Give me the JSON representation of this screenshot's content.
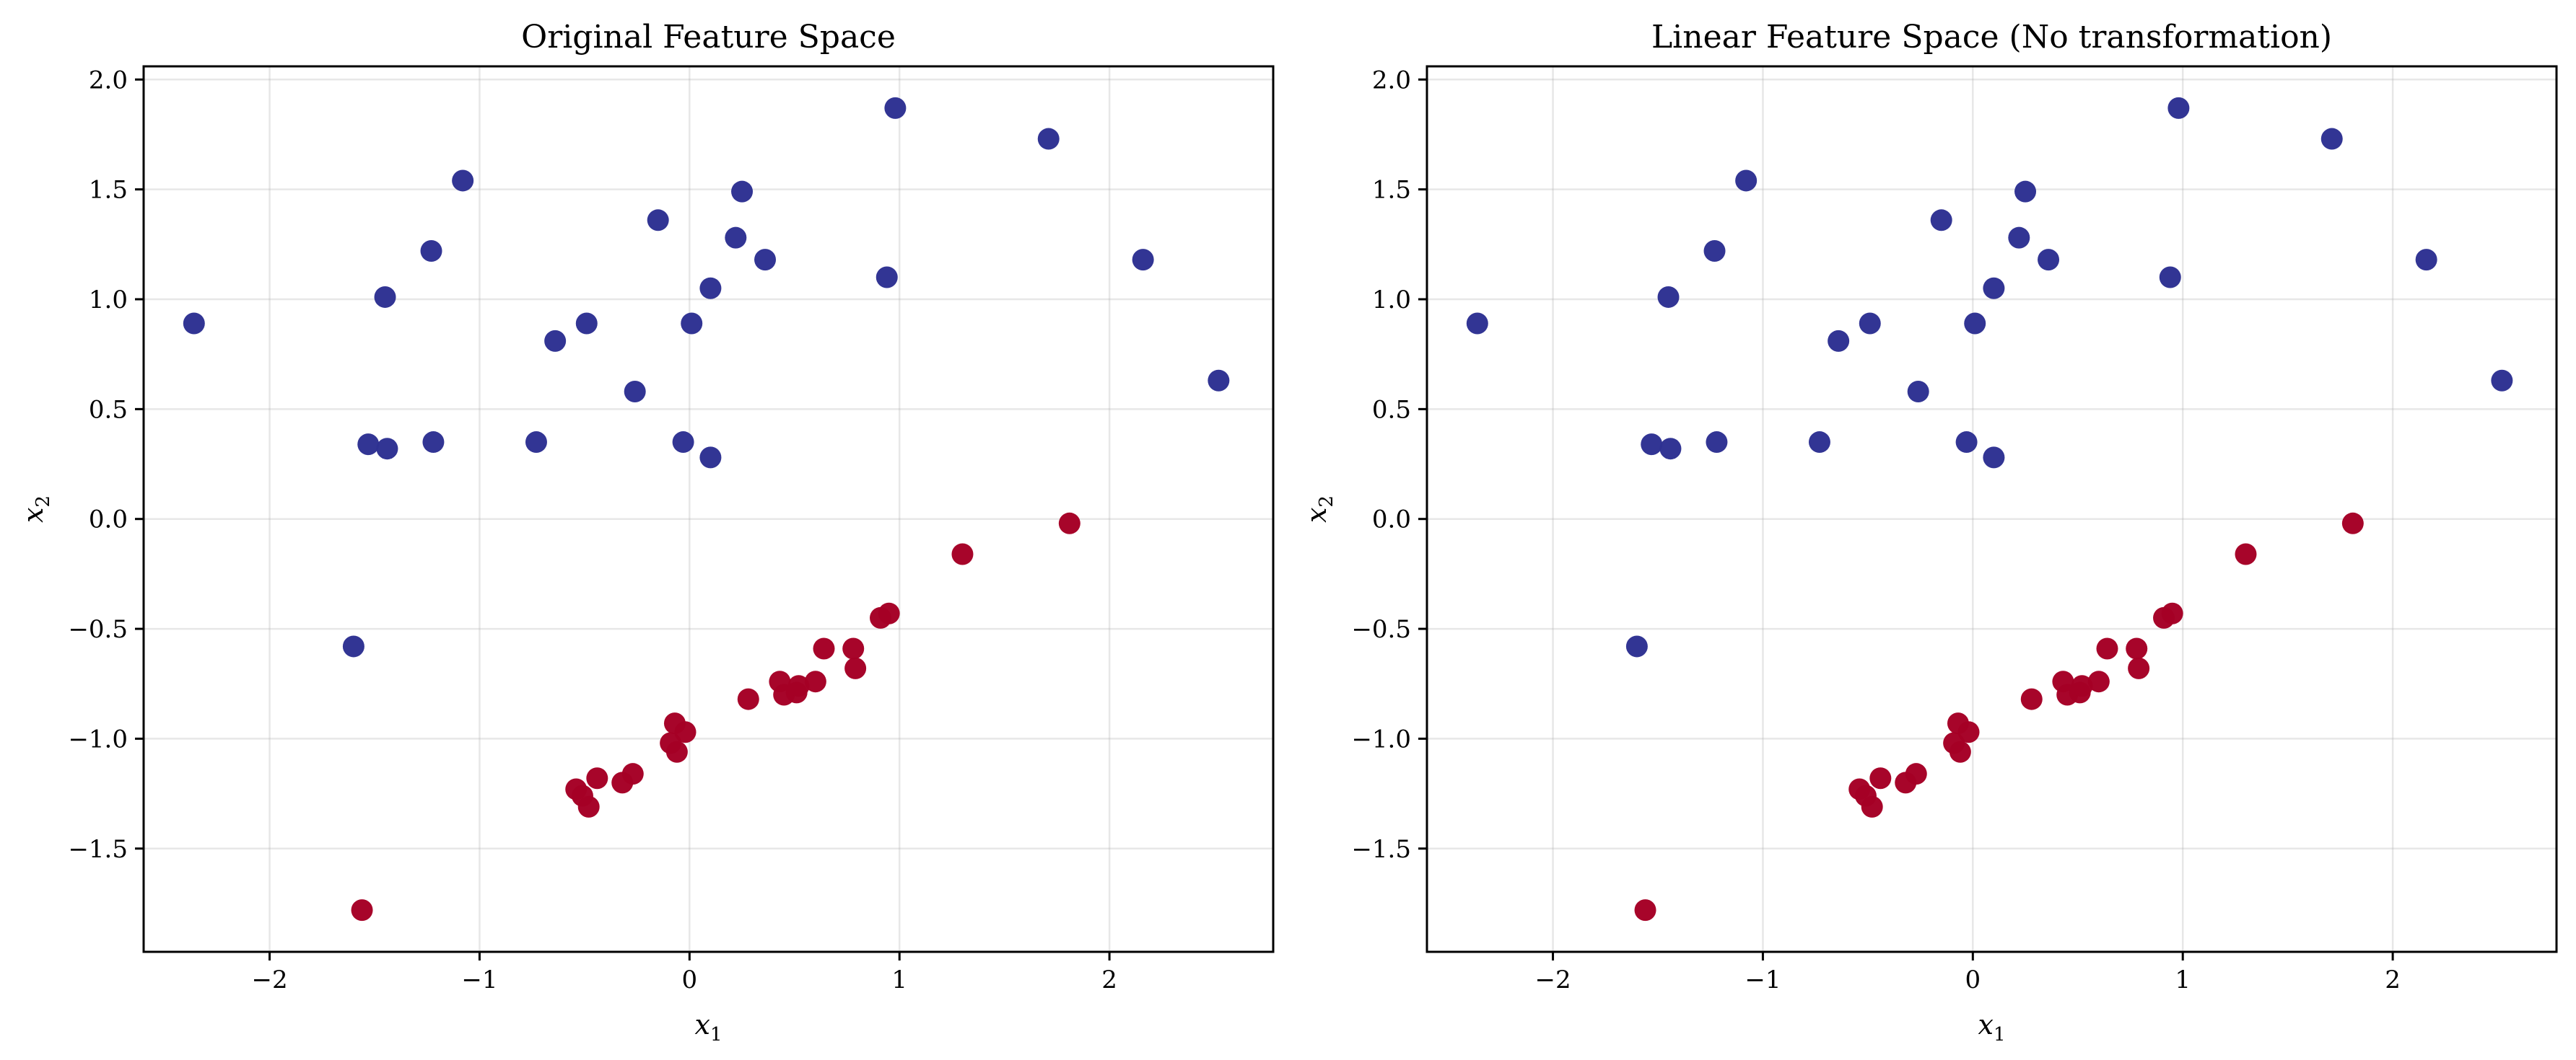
{
  "chart_data": [
    {
      "type": "scatter",
      "title": "Original Feature Space",
      "xlabel": "x",
      "xlabel_sub": "1",
      "ylabel": "x",
      "ylabel_sub": "2",
      "xlim": [
        -2.6,
        2.78
      ],
      "ylim": [
        -1.97,
        2.06
      ],
      "xticks": [
        -2,
        -1,
        0,
        1,
        2
      ],
      "yticks": [
        -1.5,
        -1.0,
        -0.5,
        0.0,
        0.5,
        1.0,
        1.5,
        2.0
      ],
      "xtick_labels": [
        "−2",
        "−1",
        "0",
        "1",
        "2"
      ],
      "ytick_labels": [
        "−1.5",
        "−1.0",
        "−0.5",
        "0.0",
        "0.5",
        "1.0",
        "1.5",
        "2.0"
      ],
      "grid": true,
      "series": [
        {
          "color": "#2e3192",
          "points": [
            [
              -2.36,
              0.89
            ],
            [
              -1.53,
              0.34
            ],
            [
              -1.45,
              1.01
            ],
            [
              -1.44,
              0.32
            ],
            [
              -1.23,
              1.22
            ],
            [
              -1.22,
              0.35
            ],
            [
              -1.08,
              1.54
            ],
            [
              -0.73,
              0.35
            ],
            [
              -0.64,
              0.81
            ],
            [
              -0.49,
              0.89
            ],
            [
              -0.26,
              0.58
            ],
            [
              -0.15,
              1.36
            ],
            [
              -0.03,
              0.35
            ],
            [
              0.01,
              0.89
            ],
            [
              0.1,
              1.05
            ],
            [
              0.1,
              0.28
            ],
            [
              0.22,
              1.28
            ],
            [
              0.25,
              1.49
            ],
            [
              0.36,
              1.18
            ],
            [
              0.94,
              1.1
            ],
            [
              0.98,
              1.87
            ],
            [
              1.71,
              1.73
            ],
            [
              2.16,
              1.18
            ],
            [
              2.52,
              0.63
            ],
            [
              -1.6,
              -0.58
            ]
          ]
        },
        {
          "color": "#a50026",
          "points": [
            [
              -1.56,
              -1.78
            ],
            [
              -0.54,
              -1.23
            ],
            [
              -0.51,
              -1.26
            ],
            [
              -0.48,
              -1.31
            ],
            [
              -0.44,
              -1.18
            ],
            [
              -0.32,
              -1.2
            ],
            [
              -0.27,
              -1.16
            ],
            [
              -0.09,
              -1.02
            ],
            [
              -0.07,
              -0.93
            ],
            [
              -0.06,
              -1.06
            ],
            [
              -0.02,
              -0.97
            ],
            [
              0.28,
              -0.82
            ],
            [
              0.43,
              -0.74
            ],
            [
              0.45,
              -0.8
            ],
            [
              0.51,
              -0.79
            ],
            [
              0.52,
              -0.76
            ],
            [
              0.6,
              -0.74
            ],
            [
              0.64,
              -0.59
            ],
            [
              0.78,
              -0.59
            ],
            [
              0.79,
              -0.68
            ],
            [
              0.91,
              -0.45
            ],
            [
              0.95,
              -0.43
            ],
            [
              1.3,
              -0.16
            ],
            [
              1.81,
              -0.02
            ]
          ]
        }
      ]
    },
    {
      "type": "scatter",
      "title": "Linear Feature Space (No transformation)",
      "xlabel": "x",
      "xlabel_sub": "1",
      "ylabel": "x",
      "ylabel_sub": "2",
      "xlim": [
        -2.6,
        2.78
      ],
      "ylim": [
        -1.97,
        2.06
      ],
      "xticks": [
        -2,
        -1,
        0,
        1,
        2
      ],
      "yticks": [
        -1.5,
        -1.0,
        -0.5,
        0.0,
        0.5,
        1.0,
        1.5,
        2.0
      ],
      "xtick_labels": [
        "−2",
        "−1",
        "0",
        "1",
        "2"
      ],
      "ytick_labels": [
        "−1.5",
        "−1.0",
        "−0.5",
        "0.0",
        "0.5",
        "1.0",
        "1.5",
        "2.0"
      ],
      "grid": true,
      "series": [
        {
          "color": "#2e3192",
          "points": [
            [
              -2.36,
              0.89
            ],
            [
              -1.53,
              0.34
            ],
            [
              -1.45,
              1.01
            ],
            [
              -1.44,
              0.32
            ],
            [
              -1.23,
              1.22
            ],
            [
              -1.22,
              0.35
            ],
            [
              -1.08,
              1.54
            ],
            [
              -0.73,
              0.35
            ],
            [
              -0.64,
              0.81
            ],
            [
              -0.49,
              0.89
            ],
            [
              -0.26,
              0.58
            ],
            [
              -0.15,
              1.36
            ],
            [
              -0.03,
              0.35
            ],
            [
              0.01,
              0.89
            ],
            [
              0.1,
              1.05
            ],
            [
              0.1,
              0.28
            ],
            [
              0.22,
              1.28
            ],
            [
              0.25,
              1.49
            ],
            [
              0.36,
              1.18
            ],
            [
              0.94,
              1.1
            ],
            [
              0.98,
              1.87
            ],
            [
              1.71,
              1.73
            ],
            [
              2.16,
              1.18
            ],
            [
              2.52,
              0.63
            ],
            [
              -1.6,
              -0.58
            ]
          ]
        },
        {
          "color": "#a50026",
          "points": [
            [
              -1.56,
              -1.78
            ],
            [
              -0.54,
              -1.23
            ],
            [
              -0.51,
              -1.26
            ],
            [
              -0.48,
              -1.31
            ],
            [
              -0.44,
              -1.18
            ],
            [
              -0.32,
              -1.2
            ],
            [
              -0.27,
              -1.16
            ],
            [
              -0.09,
              -1.02
            ],
            [
              -0.07,
              -0.93
            ],
            [
              -0.06,
              -1.06
            ],
            [
              -0.02,
              -0.97
            ],
            [
              0.28,
              -0.82
            ],
            [
              0.43,
              -0.74
            ],
            [
              0.45,
              -0.8
            ],
            [
              0.51,
              -0.79
            ],
            [
              0.52,
              -0.76
            ],
            [
              0.6,
              -0.74
            ],
            [
              0.64,
              -0.59
            ],
            [
              0.78,
              -0.59
            ],
            [
              0.79,
              -0.68
            ],
            [
              0.91,
              -0.45
            ],
            [
              0.95,
              -0.43
            ],
            [
              1.3,
              -0.16
            ],
            [
              1.81,
              -0.02
            ]
          ]
        }
      ]
    }
  ]
}
